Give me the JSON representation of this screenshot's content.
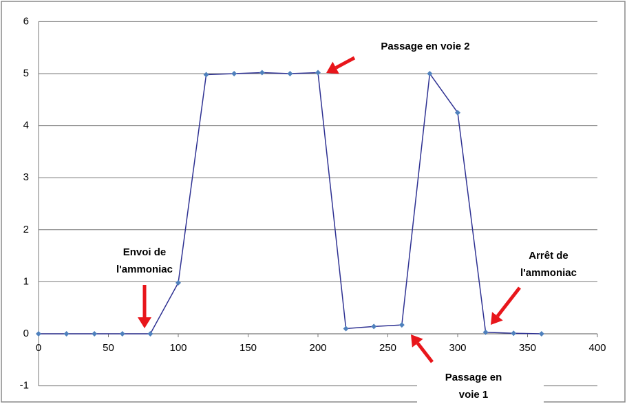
{
  "chart_data": {
    "type": "line",
    "x": [
      0,
      20,
      40,
      60,
      80,
      100,
      120,
      140,
      160,
      180,
      200,
      220,
      240,
      260,
      280,
      300,
      320,
      340,
      360
    ],
    "values": [
      0,
      0,
      0,
      0,
      0,
      0.98,
      4.98,
      5,
      5.02,
      5,
      5.02,
      0.1,
      0.14,
      0.17,
      5,
      4.25,
      0.03,
      0.01,
      0
    ],
    "color": "#2e3192",
    "marker_color": "#4f81bd",
    "xlim": [
      0,
      400
    ],
    "xticks": [
      0,
      50,
      100,
      150,
      200,
      250,
      300,
      350,
      400
    ],
    "ylim": [
      -1,
      6
    ],
    "yticks": [
      -1,
      0,
      1,
      2,
      3,
      4,
      5,
      6
    ],
    "grid": true,
    "annotations": [
      {
        "lines": [
          "Passage en voie 2"
        ]
      },
      {
        "lines": [
          "Envoi de",
          "l'ammoniac"
        ]
      },
      {
        "lines": [
          "Arrêt de",
          "l'ammoniac"
        ]
      },
      {
        "lines": [
          "Passage en",
          "voie 1"
        ]
      }
    ]
  }
}
